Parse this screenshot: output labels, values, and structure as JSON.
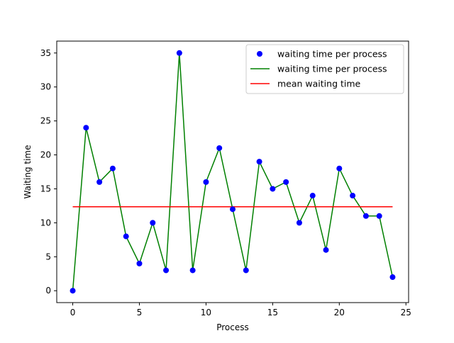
{
  "chart_data": {
    "type": "line",
    "xlabel": "Process",
    "ylabel": "Waiting time",
    "xlim": [
      -1.2,
      25.2
    ],
    "ylim": [
      -1.75,
      36.75
    ],
    "xticks": [
      0,
      5,
      10,
      15,
      20,
      25
    ],
    "yticks": [
      0,
      5,
      10,
      15,
      20,
      25,
      30,
      35
    ],
    "grid": false,
    "legend_position": "top-right",
    "x": [
      0,
      1,
      2,
      3,
      4,
      5,
      6,
      7,
      8,
      9,
      10,
      11,
      12,
      13,
      14,
      15,
      16,
      17,
      18,
      19,
      20,
      21,
      22,
      23,
      24
    ],
    "series": [
      {
        "name": "waiting time per process",
        "kind": "scatter",
        "color": "#0000ff",
        "values": [
          0,
          24,
          16,
          18,
          8,
          4,
          10,
          3,
          35,
          3,
          16,
          21,
          12,
          3,
          19,
          15,
          16,
          10,
          14,
          6,
          18,
          14,
          11,
          11,
          2
        ]
      },
      {
        "name": "waiting time per process",
        "kind": "line",
        "color": "#008000",
        "values": [
          0,
          24,
          16,
          18,
          8,
          4,
          10,
          3,
          35,
          3,
          16,
          21,
          12,
          3,
          19,
          15,
          16,
          10,
          14,
          6,
          18,
          14,
          11,
          11,
          2
        ]
      },
      {
        "name": "mean waiting time",
        "kind": "hline",
        "color": "#ff0000",
        "x_range": [
          0,
          24
        ],
        "value": 12.36
      }
    ]
  }
}
